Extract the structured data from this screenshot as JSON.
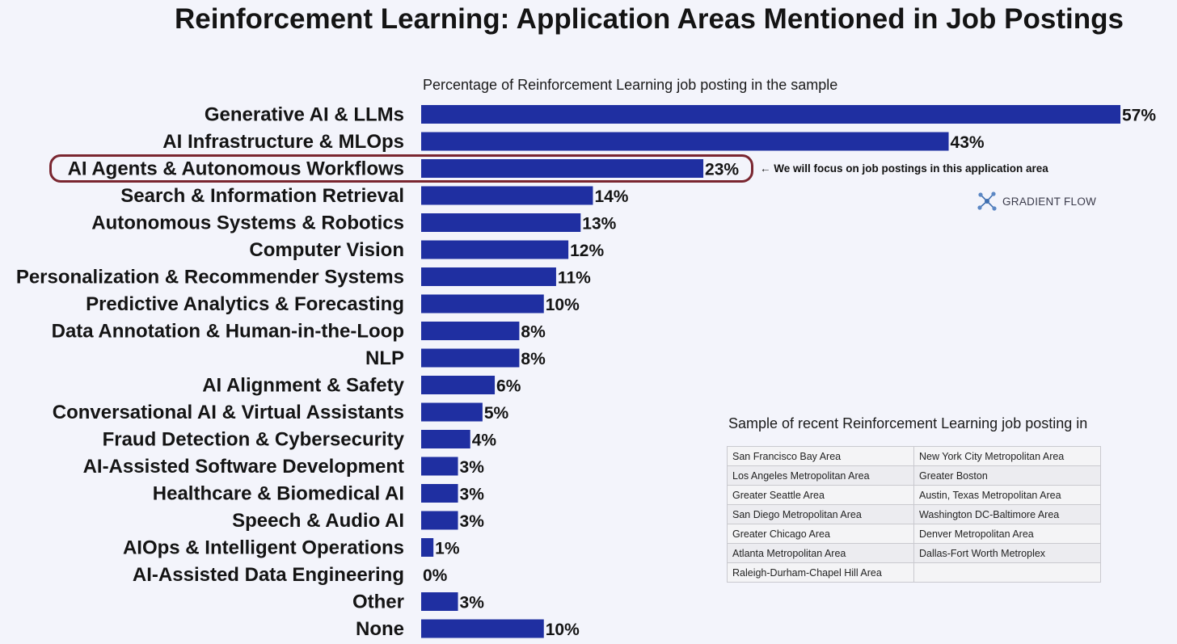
{
  "title": "Reinforcement Learning: Application Areas Mentioned in Job Postings",
  "chart_data": {
    "type": "bar",
    "orientation": "horizontal",
    "subtitle": "Percentage of Reinforcement Learning job posting in the sample",
    "bar_color": "#1f2fa1",
    "value_suffix": "%",
    "xlim": [
      0,
      57
    ],
    "grid": false,
    "categories": [
      "Generative AI & LLMs",
      "AI Infrastructure & MLOps",
      "AI Agents & Autonomous Workflows",
      "Search & Information Retrieval",
      "Autonomous Systems & Robotics",
      "Computer Vision",
      "Personalization & Recommender Systems",
      "Predictive Analytics & Forecasting",
      "Data Annotation & Human-in-the-Loop",
      "NLP",
      "AI Alignment & Safety",
      "Conversational AI & Virtual Assistants",
      "Fraud Detection & Cybersecurity",
      "AI-Assisted Software Development",
      "Healthcare & Biomedical AI",
      "Speech & Audio AI",
      "AIOps & Intelligent Operations",
      "AI-Assisted Data Engineering",
      "Other",
      "None"
    ],
    "values": [
      57,
      43,
      23,
      14,
      13,
      12,
      11,
      10,
      8,
      8,
      6,
      5,
      4,
      3,
      3,
      3,
      1,
      0,
      3,
      10
    ],
    "highlight_index": 2,
    "highlight_color": "#7a2630",
    "annotation": "← We will focus on job postings in this application area"
  },
  "logo": {
    "text": "GRADIENT FLOW",
    "icon": "network-nodes-icon",
    "color": "#3f6fb0"
  },
  "sample": {
    "caption": "Sample of recent Reinforcement Learning job posting in",
    "rows": [
      [
        "San Francisco Bay Area",
        "New York City Metropolitan Area"
      ],
      [
        "Los Angeles Metropolitan Area",
        "Greater Boston"
      ],
      [
        "Greater Seattle Area",
        "Austin, Texas Metropolitan Area"
      ],
      [
        "San Diego Metropolitan Area",
        "Washington DC-Baltimore Area"
      ],
      [
        "Greater Chicago Area",
        "Denver Metropolitan Area"
      ],
      [
        "Atlanta Metropolitan Area",
        "Dallas-Fort Worth Metroplex"
      ],
      [
        "Raleigh-Durham-Chapel Hill Area",
        ""
      ]
    ]
  }
}
